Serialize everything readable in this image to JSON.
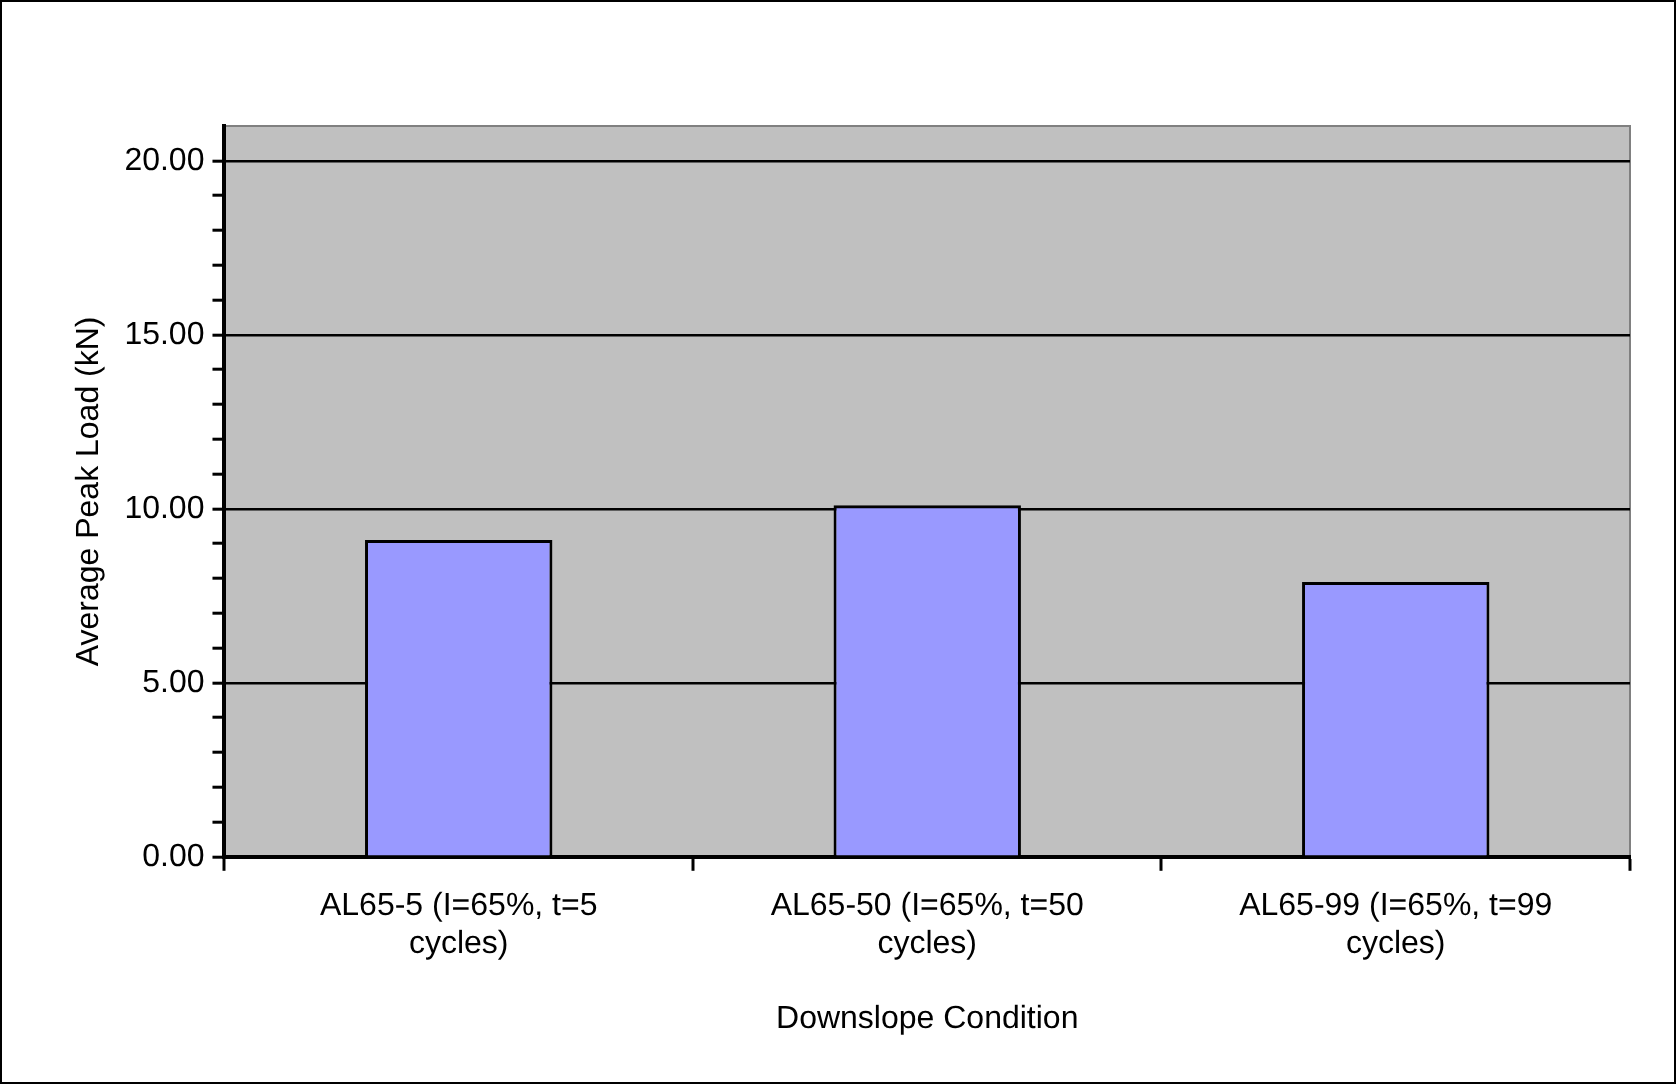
{
  "chart_data": {
    "type": "bar",
    "xlabel": "Downslope Condition",
    "ylabel": "Average Peak Load (kN)",
    "categories": [
      "AL65-5 (I=65%, t=5 cycles)",
      "AL65-50 (I=65%, t=50 cycles)",
      "AL65-99 (I=65%, t=99 cycles)"
    ],
    "values": [
      9.1,
      10.1,
      7.9
    ],
    "color": "#9999ff",
    "ylim": [
      0,
      21
    ],
    "yticks": [
      {
        "value": 0,
        "label": "0.00"
      },
      {
        "value": 1,
        "label": null
      },
      {
        "value": 2,
        "label": null
      },
      {
        "value": 3,
        "label": null
      },
      {
        "value": 4,
        "label": null
      },
      {
        "value": 5,
        "label": "5.00"
      },
      {
        "value": 6,
        "label": null
      },
      {
        "value": 7,
        "label": null
      },
      {
        "value": 8,
        "label": null
      },
      {
        "value": 9,
        "label": null
      },
      {
        "value": 10,
        "label": "10.00"
      },
      {
        "value": 11,
        "label": null
      },
      {
        "value": 12,
        "label": null
      },
      {
        "value": 13,
        "label": null
      },
      {
        "value": 14,
        "label": null
      },
      {
        "value": 15,
        "label": "15.00"
      },
      {
        "value": 16,
        "label": null
      },
      {
        "value": 17,
        "label": null
      },
      {
        "value": 18,
        "label": null
      },
      {
        "value": 19,
        "label": null
      },
      {
        "value": 20,
        "label": "20.00"
      }
    ],
    "grid": "y",
    "legend": false
  }
}
